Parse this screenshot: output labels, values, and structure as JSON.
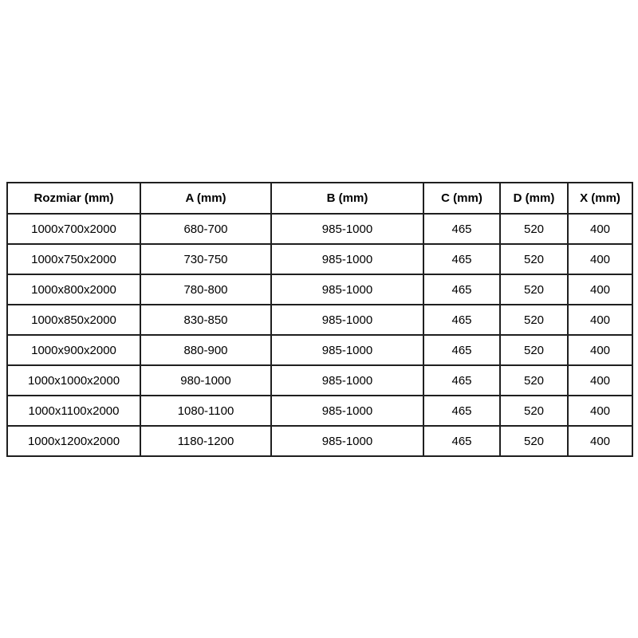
{
  "table": {
    "columns": [
      "Rozmiar (mm)",
      "A (mm)",
      "B (mm)",
      "C (mm)",
      "D (mm)",
      "X (mm)"
    ],
    "rows": [
      [
        "1000x700x2000",
        "680-700",
        "985-1000",
        "465",
        "520",
        "400"
      ],
      [
        "1000x750x2000",
        "730-750",
        "985-1000",
        "465",
        "520",
        "400"
      ],
      [
        "1000x800x2000",
        "780-800",
        "985-1000",
        "465",
        "520",
        "400"
      ],
      [
        "1000x850x2000",
        "830-850",
        "985-1000",
        "465",
        "520",
        "400"
      ],
      [
        "1000x900x2000",
        "880-900",
        "985-1000",
        "465",
        "520",
        "400"
      ],
      [
        "1000x1000x2000",
        "980-1000",
        "985-1000",
        "465",
        "520",
        "400"
      ],
      [
        "1000x1100x2000",
        "1080-1100",
        "985-1000",
        "465",
        "520",
        "400"
      ],
      [
        "1000x1200x2000",
        "1180-1200",
        "985-1000",
        "465",
        "520",
        "400"
      ]
    ],
    "colors": {
      "border": "#1f1f1f",
      "text": "#000000",
      "background": "#ffffff"
    }
  }
}
